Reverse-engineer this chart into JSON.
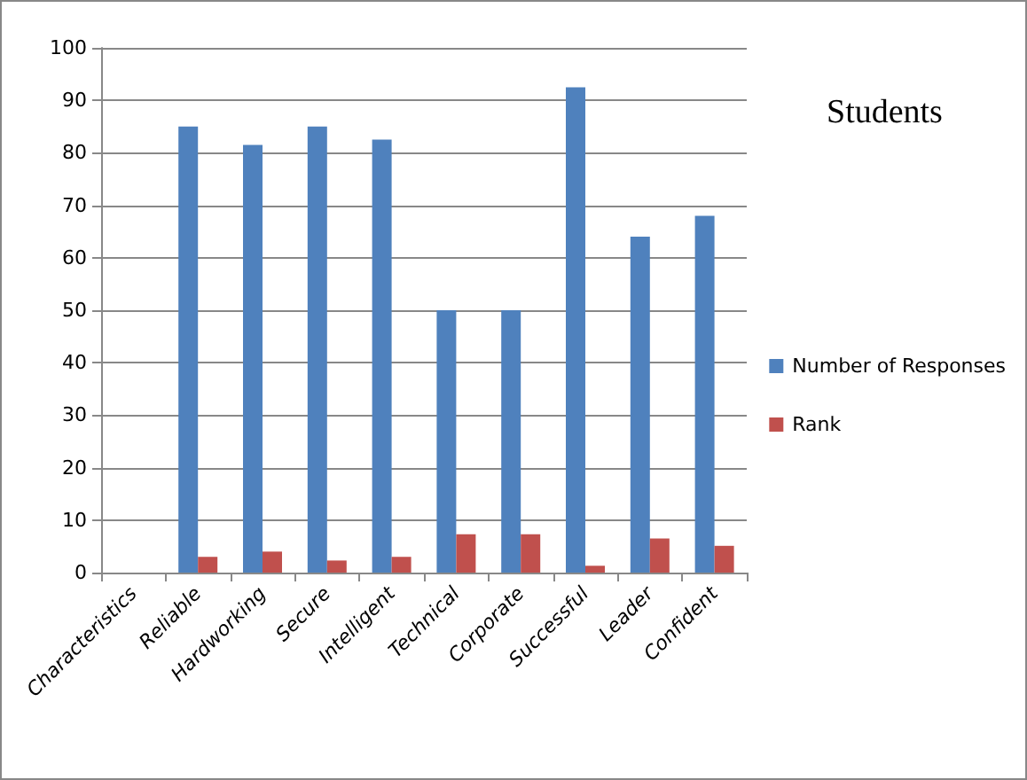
{
  "chart_data": {
    "type": "bar",
    "title": "Students",
    "categories": [
      "Characteristics",
      "Reliable",
      "Hardworking",
      "Secure",
      "Intelligent",
      "Technical",
      "Corporate",
      "Successful",
      "Leader",
      "Confident"
    ],
    "series": [
      {
        "name": "Number of Responses",
        "color": "#4f81bd",
        "values": [
          null,
          85,
          81.5,
          85,
          82.5,
          50,
          50,
          92.5,
          64,
          68
        ]
      },
      {
        "name": "Rank",
        "color": "#c0504d",
        "values": [
          null,
          3,
          4,
          2.3,
          3,
          7.3,
          7.3,
          1.3,
          6.5,
          5.1
        ]
      }
    ],
    "ylim": [
      0,
      100
    ],
    "yticks": [
      0,
      10,
      20,
      30,
      40,
      50,
      60,
      70,
      80,
      90,
      100
    ],
    "grid": "y",
    "legend": "right"
  }
}
